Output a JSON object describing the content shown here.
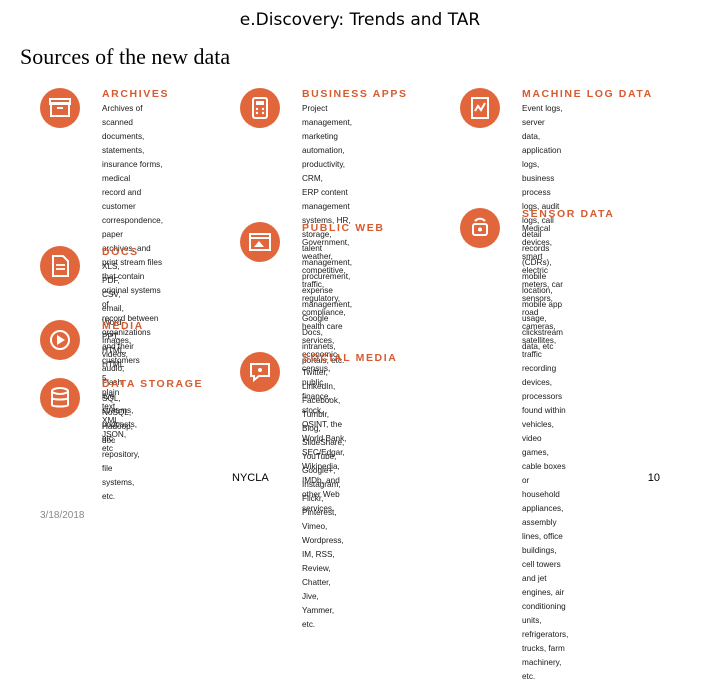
{
  "slide": {
    "title": "e.Discovery: Trends and TAR",
    "subtitle": "Sources of the new data"
  },
  "categories": {
    "archives": {
      "title": "ARCHIVES",
      "icon": "archive-box-icon",
      "desc": "Archives of scanned\ndocuments, statements,\ninsurance forms, medical\nrecord and customer\ncorrespondence, paper\narchives, and print stream files\nthat contain original systems of\nrecord between organizations\nand their customers"
    },
    "docs": {
      "title": "DOCS",
      "icon": "document-icon",
      "desc": "XLS, PDF, CSV, email, Word,\nPPT, HTML, HTML 5, plain text,\nXML, JSON, etc"
    },
    "media": {
      "title": "MEDIA",
      "icon": "media-icon",
      "desc": "Images, videos, audio, Flash,\nlive streams, podcasts, etc."
    },
    "data_storage": {
      "title": "DATA STORAGE",
      "icon": "database-icon",
      "desc": "SQL, NoSQL, Hadoop, doc\nrepository, file systems, etc."
    },
    "business_apps": {
      "title": "BUSINESS APPS",
      "icon": "calculator-icon",
      "desc": "Project management, marketing\nautomation, productivity, CRM,\nERP content management\nsystems, HR, storage, talent\nmanagement, procurement,\nexpense management, Google\nDocs, intranets, portals, etc."
    },
    "public_web": {
      "title": "PUBLIC WEB",
      "icon": "browser-image-icon",
      "desc": "Government, weather,\ncompetitive, traffic, regulatory,\ncompliance, health care services,\neconomic, census, public finance,\nstock, OSINT, the World Bank,\nSEC/Edgar, Wikipedia, IMDb, and\nother Web services"
    },
    "social_media": {
      "title": "SOCIAL MEDIA",
      "icon": "chat-bubble-icon",
      "desc": "Twitter, LinkedIn, Facebook,\nTumblr, Blog, SlideShare,\nYouTube, Google+, Instagram,\nFlickr, Pinterest, Vimeo,\nWordpress, IM, RSS, Review,\nChatter, Jive, Yammer, etc."
    },
    "machine_log": {
      "title": "MACHINE LOG DATA",
      "icon": "log-chart-icon",
      "desc": "Event logs, server data,\napplication logs, business\nprocess logs, audit logs, call\ndetail records (CDRs), mobile\nlocation, mobile app usage,\nclickstream data, etc"
    },
    "sensor": {
      "title": "SENSOR DATA",
      "icon": "sensor-icon",
      "desc": "Medical devices, smart electric\nmeters, car sensors, road\ncameras, satellites, traffic\nrecording devices, processors\nfound within vehicles, video\ngames, cable boxes or\nhousehold appliances, assembly\nlines, office buildings, cell towers\nand jet engines, air conditioning\nunits, refrigerators, trucks, farm\nmachinery, etc."
    }
  },
  "footer": {
    "center": "NYCLA",
    "page": "10",
    "date": "3/18/2018"
  }
}
